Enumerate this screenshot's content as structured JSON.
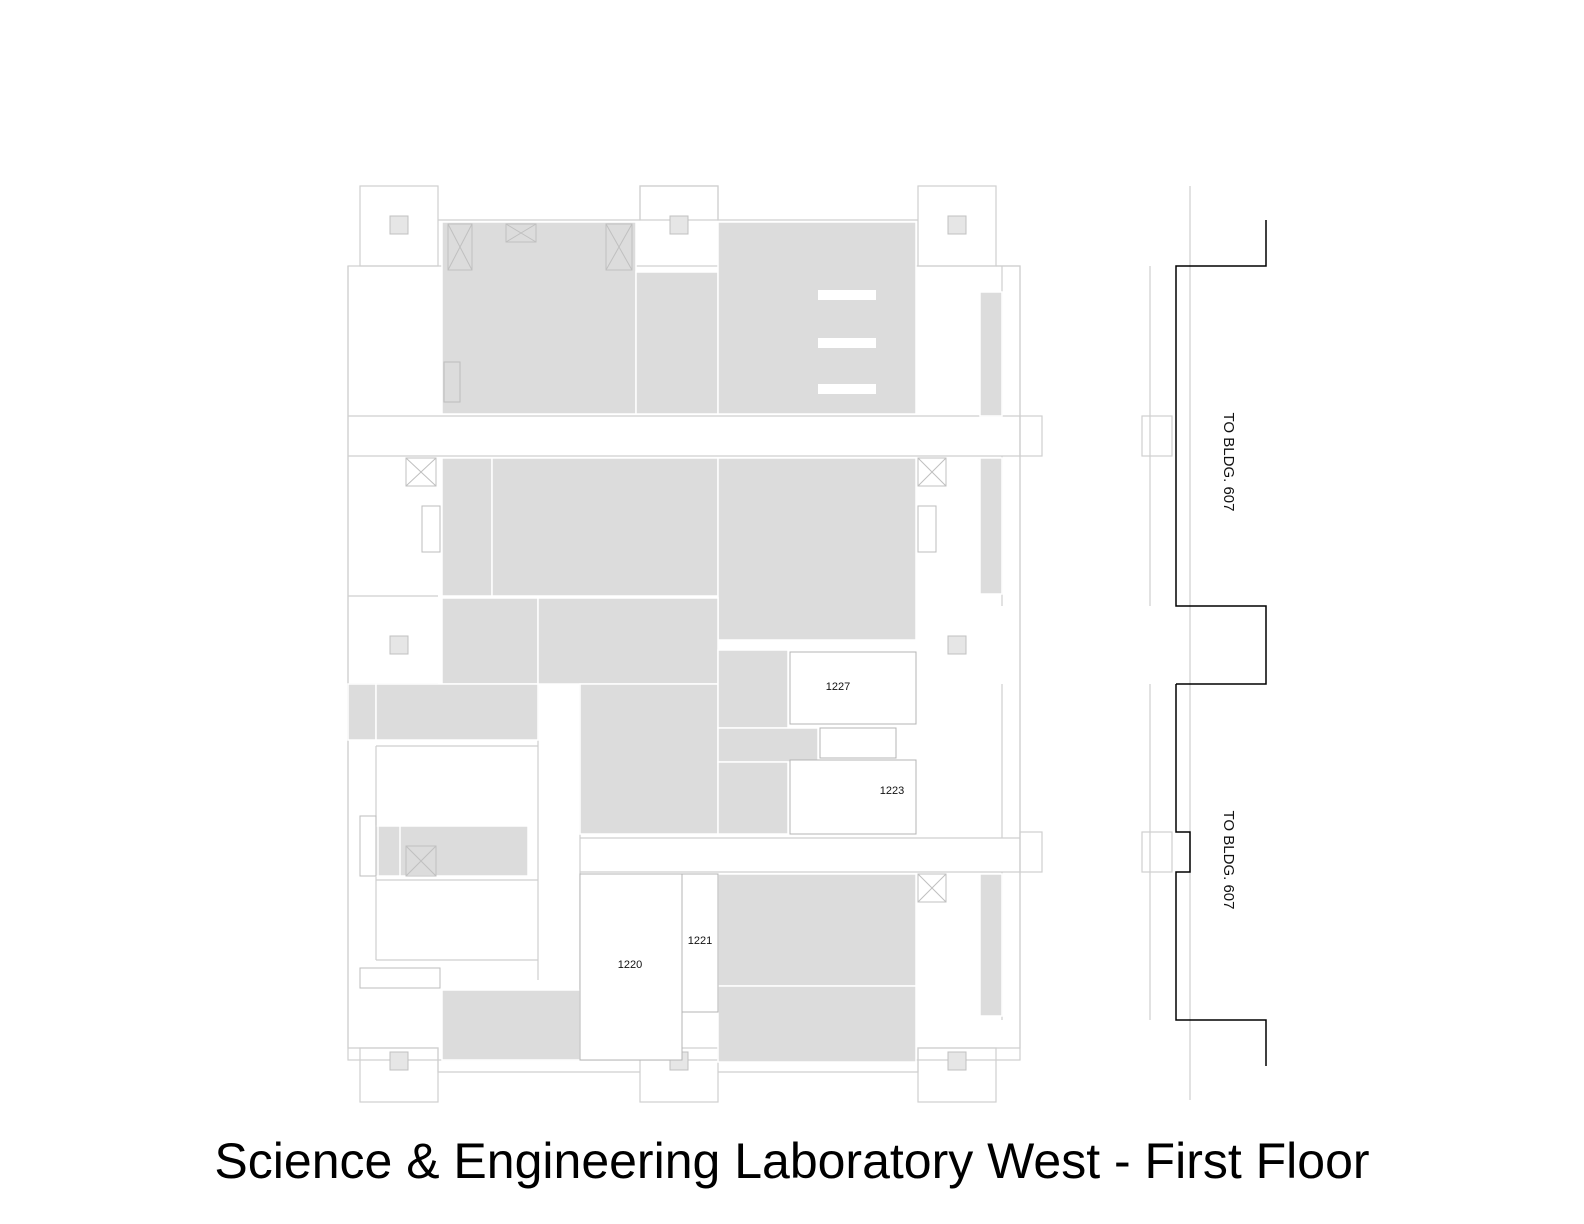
{
  "title": "Science & Engineering Laboratory West - First Floor",
  "rooms": [
    {
      "id": "room-1227",
      "label": "1227"
    },
    {
      "id": "room-1223",
      "label": "1223"
    },
    {
      "id": "room-1221",
      "label": "1221"
    },
    {
      "id": "room-1220",
      "label": "1220"
    }
  ],
  "connections": [
    {
      "id": "upper",
      "label": "TO BLDG. 607"
    },
    {
      "id": "lower",
      "label": "TO BLDG. 607"
    }
  ],
  "colors": {
    "lab_fill": "#dcdcdc",
    "wall_line": "#c8c8c8",
    "connector_line": "#000000",
    "caption": "#000000"
  }
}
